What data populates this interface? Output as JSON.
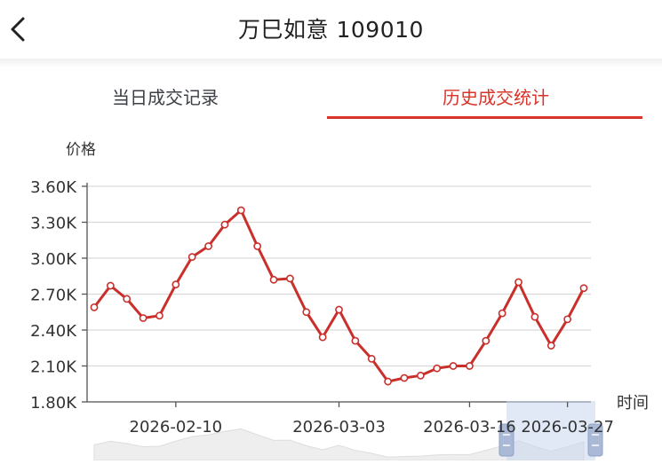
{
  "header": {
    "title": "万巳如意 109010",
    "back_icon": "chevron-left-icon"
  },
  "tabs": [
    {
      "label": "当日成交记录",
      "active": false
    },
    {
      "label": "历史成交统计",
      "active": true
    }
  ],
  "colors": {
    "accent": "#d8342b",
    "line": "#c9302c",
    "grid": "#d9d9d9",
    "axis_text": "#333333",
    "slider_fill": "#c9d6ee"
  },
  "chart_data": {
    "type": "line",
    "ylabel": "价格",
    "xlabel": "时间",
    "ylim": [
      1800,
      3600
    ],
    "y_ticks": [
      "1.80K",
      "2.10K",
      "2.40K",
      "2.70K",
      "3.00K",
      "3.30K",
      "3.60K"
    ],
    "y_tick_values": [
      1800,
      2100,
      2400,
      2700,
      3000,
      3300,
      3600
    ],
    "x_tick_labels": [
      "2026-02-10",
      "2026-03-03",
      "2026-03-16",
      "2026-03-27"
    ],
    "x_tick_index": [
      5,
      15,
      23,
      29
    ],
    "series": [
      {
        "values": [
          2590,
          2770,
          2660,
          2500,
          2520,
          2780,
          3010,
          3100,
          3280,
          3400,
          3100,
          2820,
          2830,
          2550,
          2340,
          2570,
          2310,
          2160,
          1970,
          2000,
          2020,
          2080,
          2100,
          2100,
          2310,
          2540,
          2800,
          2510,
          2270,
          2490,
          2750
        ]
      }
    ],
    "grid": true,
    "datazoom": true
  }
}
